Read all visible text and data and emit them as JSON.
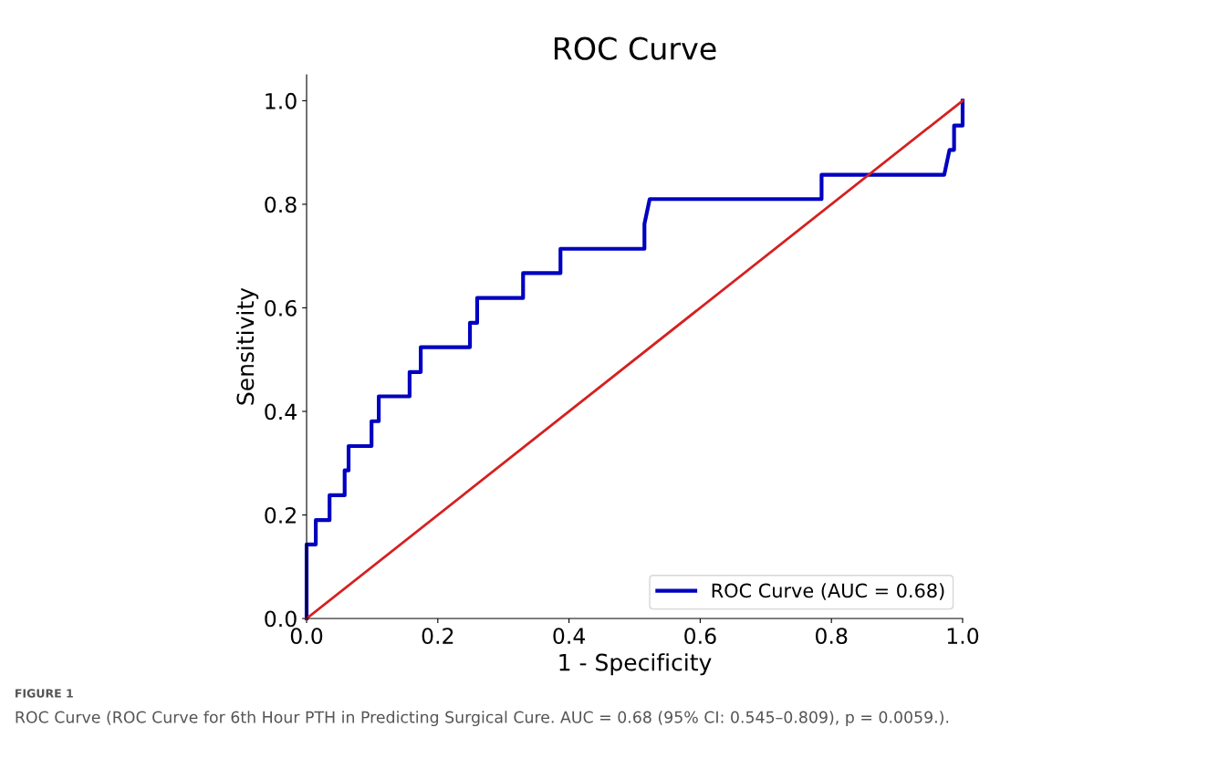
{
  "chart_data": {
    "type": "line",
    "title": "ROC Curve",
    "xlabel": "1 - Specificity",
    "ylabel": "Sensitivity",
    "xlim": [
      0,
      1.0
    ],
    "ylim": [
      0,
      1.05
    ],
    "xticks": [
      {
        "value": 0,
        "label": "0.0"
      },
      0.2,
      0.4,
      0.6,
      0.8,
      {
        "value": 1,
        "label": "1.0"
      }
    ],
    "yticks": [
      {
        "value": 0,
        "label": "0.0"
      },
      0.2,
      0.4,
      0.6,
      0.8,
      {
        "value": 1,
        "label": "1.0"
      }
    ],
    "grid": false,
    "legend": "bottom right",
    "marker": "none",
    "line_style": "solid",
    "series": [
      {
        "name": "ROC Curve (AUC = 0.68)",
        "color": "#0000c0",
        "x": [
          0,
          0,
          0.014,
          0.014,
          0.035,
          0.035,
          0.058,
          0.058,
          0.064,
          0.064,
          0.099,
          0.099,
          0.11,
          0.11,
          0.157,
          0.157,
          0.174,
          0.174,
          0.249,
          0.249,
          0.26,
          0.26,
          0.33,
          0.33,
          0.387,
          0.387,
          0.515,
          0.515,
          0.523,
          0.785,
          0.785,
          0.972,
          0.98,
          0.987,
          0.987,
          1.0,
          1.0
        ],
        "values": [
          0,
          0.143,
          0.143,
          0.19,
          0.19,
          0.238,
          0.238,
          0.286,
          0.286,
          0.333,
          0.333,
          0.381,
          0.381,
          0.429,
          0.429,
          0.476,
          0.476,
          0.524,
          0.524,
          0.571,
          0.571,
          0.619,
          0.619,
          0.667,
          0.667,
          0.714,
          0.714,
          0.762,
          0.81,
          0.81,
          0.857,
          0.857,
          0.905,
          0.905,
          0.952,
          0.952,
          1.0
        ]
      },
      {
        "color": "#d62020",
        "x": [
          0,
          1
        ],
        "values": [
          0,
          1
        ]
      }
    ],
    "annotations": [
      "FIGURE 1",
      "ROC Curve (ROC Curve for 6th Hour PTH in Predicting Surgical Cure. AUC = 0.68 (95% CI: 0.545–0.809), p = 0.0059.)."
    ]
  }
}
